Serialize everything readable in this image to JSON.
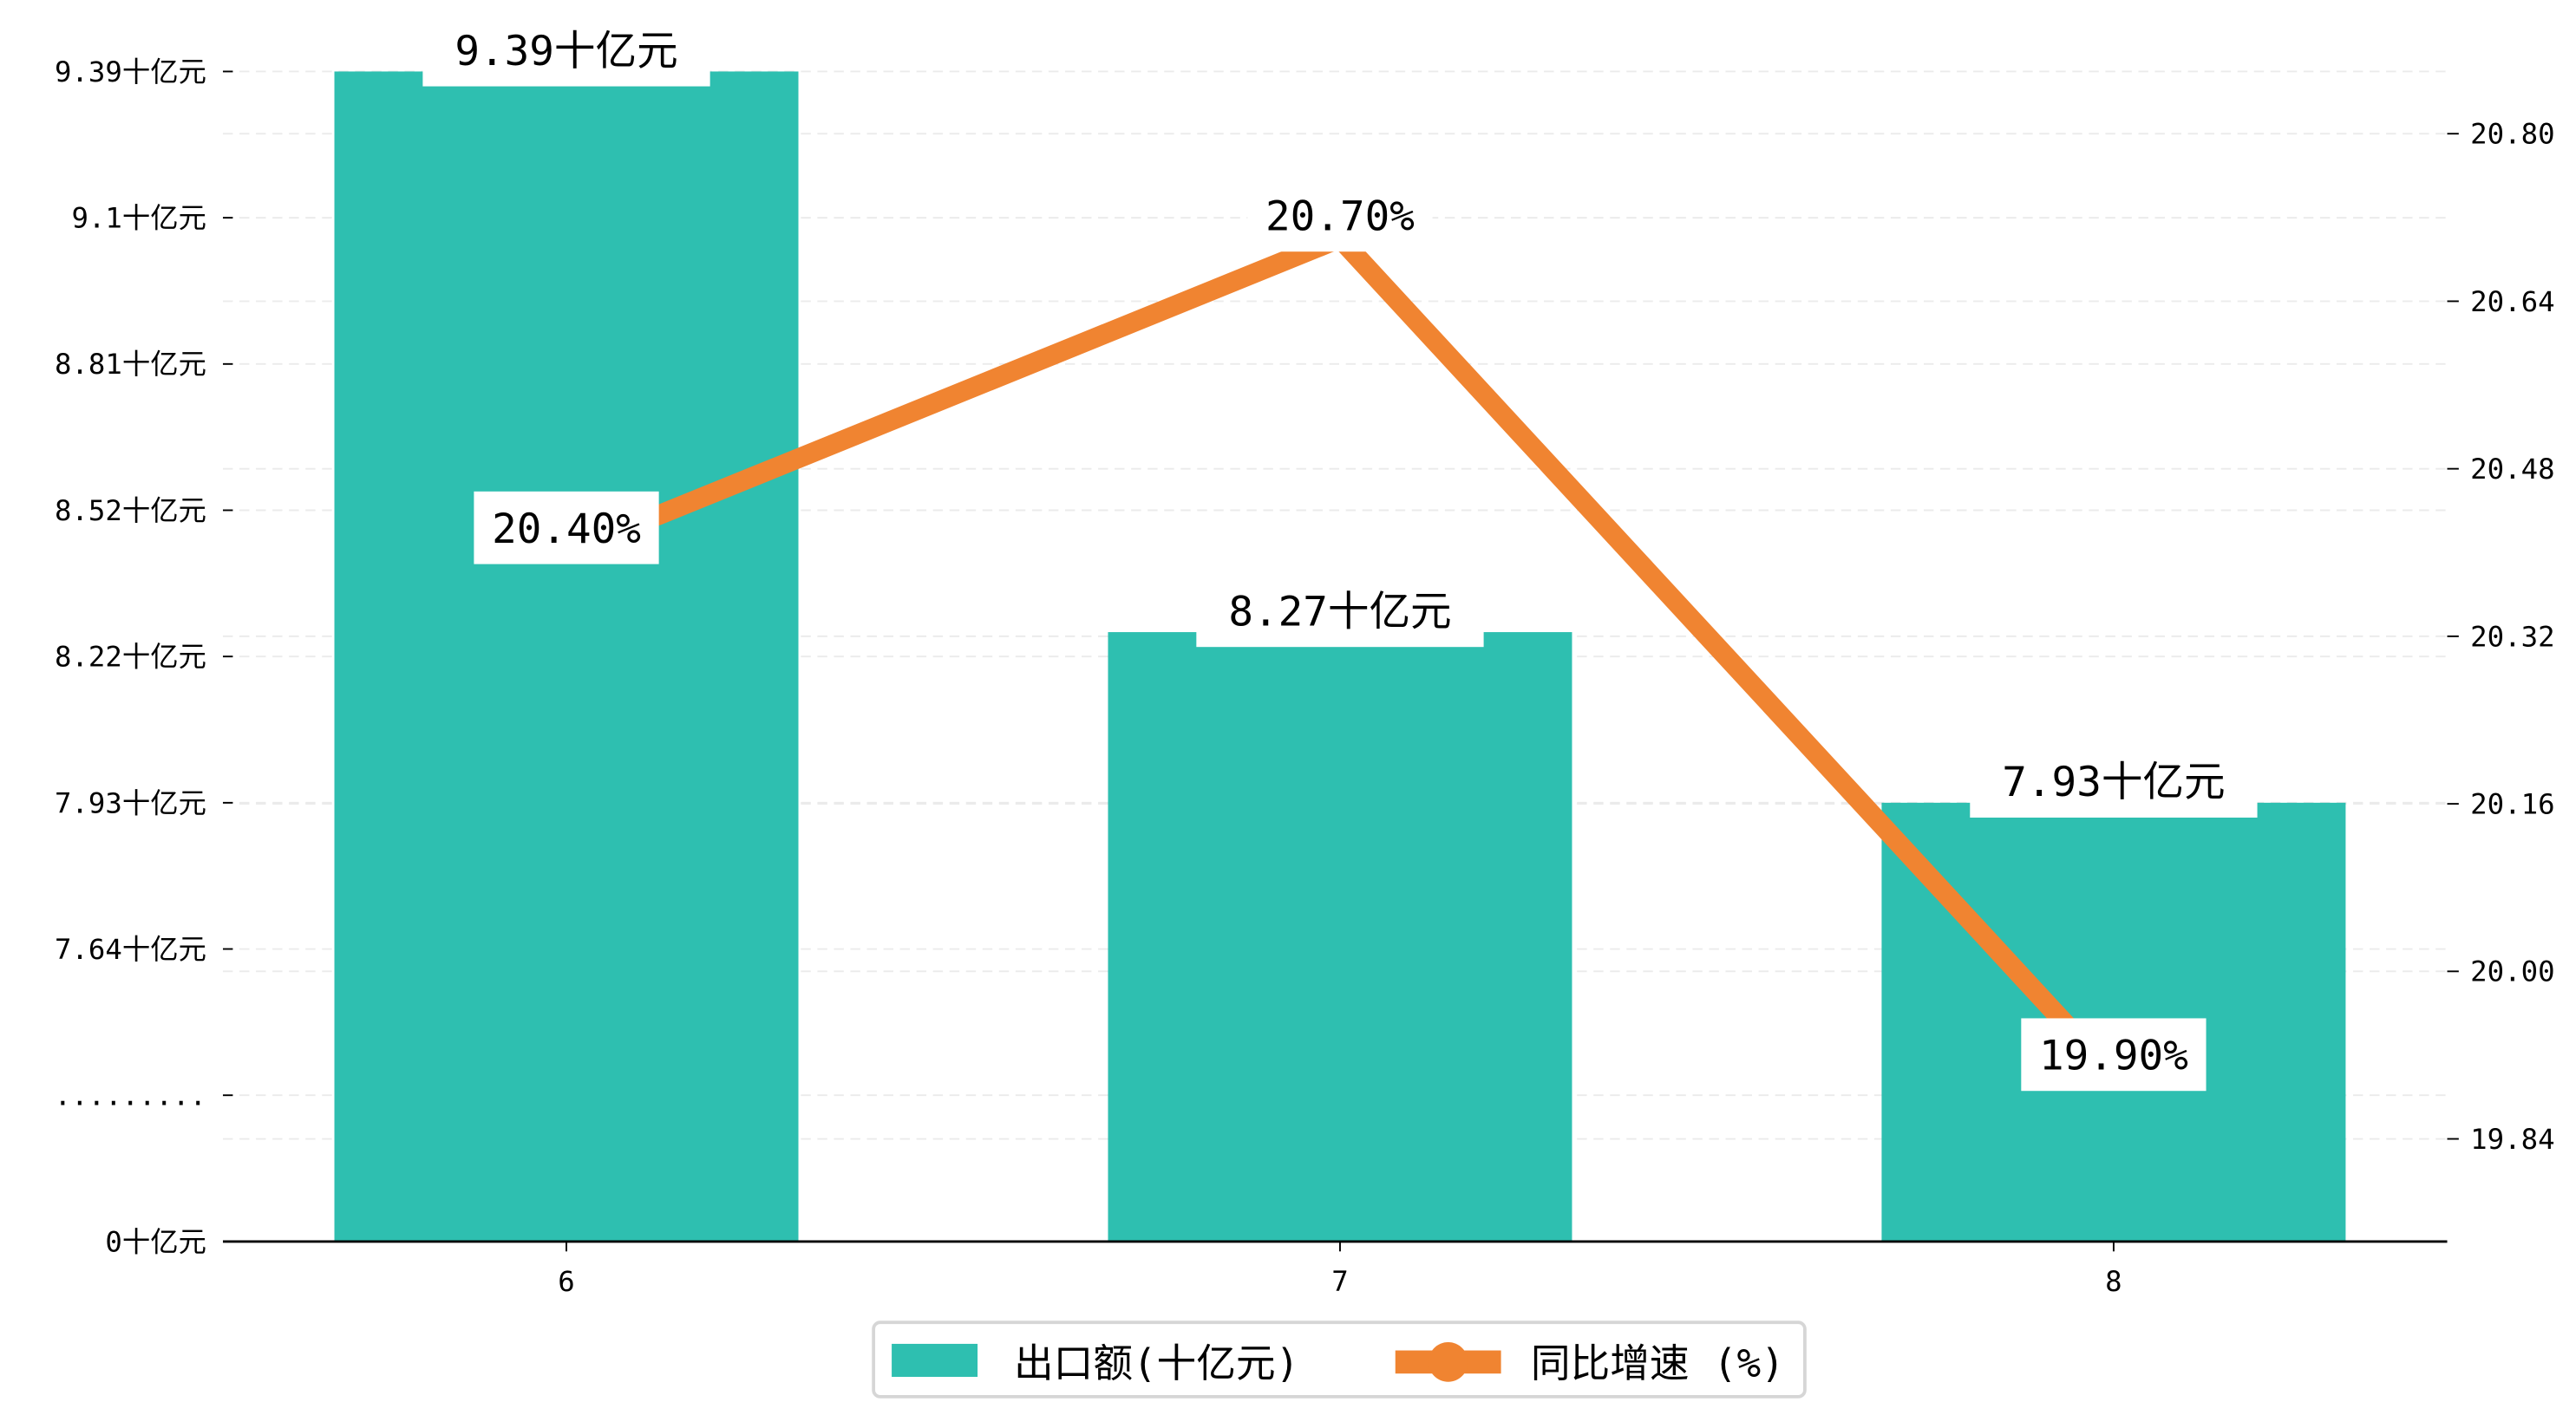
{
  "chart_data": {
    "type": "bar+line",
    "categories": [
      "6",
      "7",
      "8"
    ],
    "series": [
      {
        "name": "出口额(十亿元)",
        "type": "bar",
        "axis": "left",
        "values": [
          9.39,
          8.27,
          7.93
        ],
        "labels": [
          "9.39十亿元",
          "8.27十亿元",
          "7.93十亿元"
        ],
        "color": "#2ebfb0"
      },
      {
        "name": "同比增速 (%)",
        "type": "line",
        "axis": "right",
        "values": [
          20.4,
          20.7,
          19.9
        ],
        "labels": [
          "20.40%",
          "20.70%",
          "19.90%"
        ],
        "color": "#f08431"
      }
    ],
    "left_axis": {
      "broken": true,
      "ticks": [
        {
          "value": 0,
          "label": "0十亿元"
        },
        {
          "value": null,
          "label": "........."
        },
        {
          "value": 7.64,
          "label": "7.64十亿元"
        },
        {
          "value": 7.93,
          "label": "7.93十亿元"
        },
        {
          "value": 8.22,
          "label": "8.22十亿元"
        },
        {
          "value": 8.52,
          "label": "8.52十亿元"
        },
        {
          "value": 8.81,
          "label": "8.81十亿元"
        },
        {
          "value": 9.1,
          "label": "9.1十亿元"
        },
        {
          "value": 9.39,
          "label": "9.39十亿元"
        }
      ]
    },
    "right_axis": {
      "ylim": [
        19.742,
        20.896
      ],
      "ticks": [
        {
          "value": 19.84,
          "label": "19.84"
        },
        {
          "value": 20.0,
          "label": "20.00"
        },
        {
          "value": 20.16,
          "label": "20.16"
        },
        {
          "value": 20.32,
          "label": "20.32"
        },
        {
          "value": 20.48,
          "label": "20.48"
        },
        {
          "value": 20.64,
          "label": "20.64"
        },
        {
          "value": 20.8,
          "label": "20.80"
        }
      ]
    },
    "grid": true,
    "legend": {
      "placement": "bottom-center",
      "entries": [
        "出口额(十亿元)",
        "同比增速 (%)"
      ]
    },
    "title": "",
    "xlabel": "",
    "ylabel": ""
  }
}
